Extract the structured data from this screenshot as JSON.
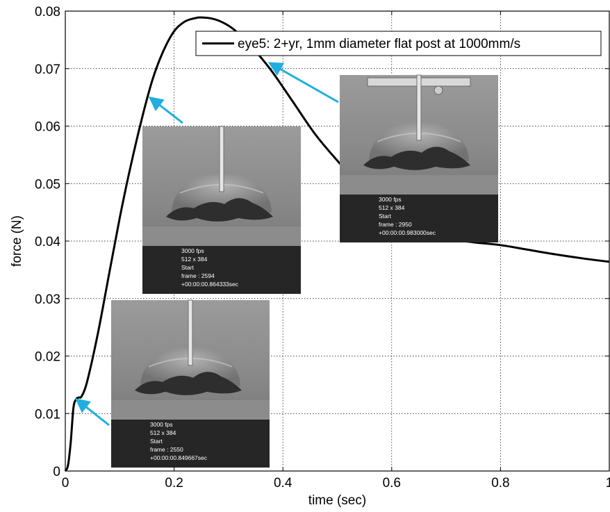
{
  "chart_data": {
    "type": "line",
    "xlabel": "time (sec)",
    "ylabel": "force (N)",
    "xlim": [
      0,
      1
    ],
    "ylim": [
      0,
      0.08
    ],
    "xticks": [
      0,
      0.2,
      0.4,
      0.6,
      0.8,
      1
    ],
    "xtick_labels": [
      "0",
      "0.2",
      "0.4",
      "0.6",
      "0.8",
      "1"
    ],
    "yticks": [
      0,
      0.01,
      0.02,
      0.03,
      0.04,
      0.05,
      0.06,
      0.07,
      0.08
    ],
    "ytick_labels": [
      "0",
      "0.01",
      "0.02",
      "0.03",
      "0.04",
      "0.05",
      "0.06",
      "0.07",
      "0.08"
    ],
    "grid": true,
    "legend_position": "top-right",
    "series": [
      {
        "name": "eye5: 2+yr, 1mm diameter flat post at 1000mm/s",
        "color": "#000000",
        "x": [
          0,
          0.005,
          0.01,
          0.015,
          0.02,
          0.025,
          0.03,
          0.04,
          0.06,
          0.08,
          0.1,
          0.12,
          0.14,
          0.16,
          0.18,
          0.2,
          0.22,
          0.24,
          0.25,
          0.27,
          0.29,
          0.31,
          0.33,
          0.35,
          0.38,
          0.42,
          0.46,
          0.5,
          0.55,
          0.6,
          0.65,
          0.7,
          0.75,
          0.8,
          0.85,
          0.9,
          0.95,
          1.0
        ],
        "y": [
          0,
          0.001,
          0.005,
          0.011,
          0.0125,
          0.0128,
          0.013,
          0.0155,
          0.024,
          0.034,
          0.044,
          0.053,
          0.061,
          0.068,
          0.073,
          0.0765,
          0.0782,
          0.0788,
          0.0789,
          0.0787,
          0.078,
          0.0768,
          0.075,
          0.073,
          0.0695,
          0.064,
          0.0585,
          0.054,
          0.049,
          0.0455,
          0.0425,
          0.0405,
          0.0398,
          0.0393,
          0.0385,
          0.0377,
          0.037,
          0.0364
        ]
      }
    ],
    "annotations": [
      {
        "name": "frame-2550",
        "point": [
          0.02,
          0.0125
        ],
        "lines": [
          "3000 fps",
          "512 x 384",
          "Start",
          "frame : 2550",
          "+00:00:00.849667sec"
        ]
      },
      {
        "name": "frame-2594",
        "point": [
          0.155,
          0.065
        ],
        "lines": [
          "3000 fps",
          "512 x 384",
          "Start",
          "frame : 2594",
          "+00:00:00.864333sec"
        ]
      },
      {
        "name": "frame-2950",
        "point": [
          0.375,
          0.071
        ],
        "lines": [
          "3000 fps",
          "512 x 384",
          "Start",
          "frame : 2950",
          "+00:00:00.983000sec"
        ]
      }
    ],
    "arrow_color": "#21AEDF"
  }
}
